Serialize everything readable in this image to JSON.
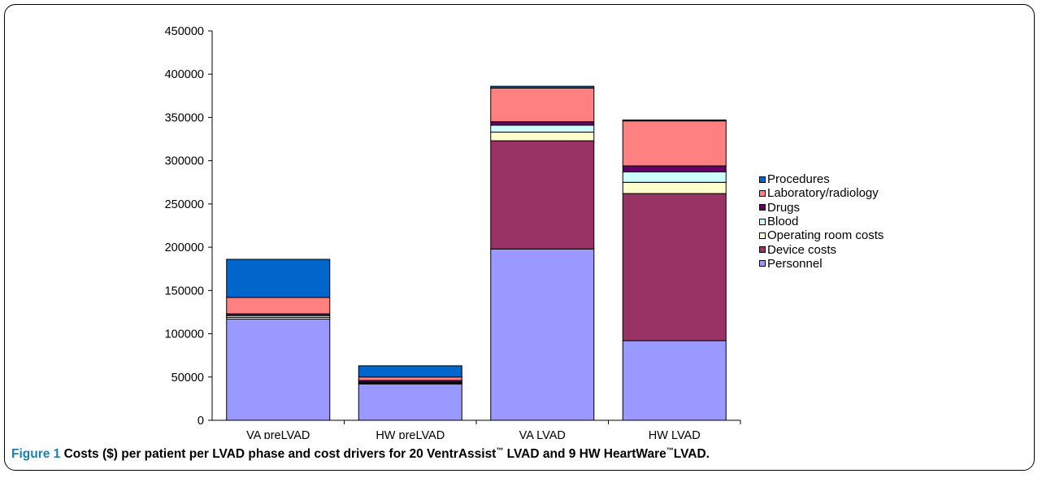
{
  "chart_data": {
    "type": "bar",
    "stacked": true,
    "categories": [
      "VA preLVAD",
      "HW preLVAD",
      "VA LVAD",
      "HW LVAD"
    ],
    "ylim": [
      0,
      450000
    ],
    "yticks": [
      0,
      50000,
      100000,
      150000,
      200000,
      250000,
      300000,
      350000,
      400000,
      450000
    ],
    "series": [
      {
        "name": "Personnel",
        "color": "#9999ff",
        "values": [
          117000,
          42000,
          198000,
          92000
        ]
      },
      {
        "name": "Device costs",
        "color": "#993366",
        "values": [
          0,
          0,
          125000,
          170000
        ]
      },
      {
        "name": "Operating room costs",
        "color": "#ffffcc",
        "values": [
          2000,
          1000,
          10000,
          13000
        ]
      },
      {
        "name": "Blood",
        "color": "#ccffff",
        "values": [
          2000,
          1000,
          8000,
          12000
        ]
      },
      {
        "name": "Drugs",
        "color": "#660066",
        "values": [
          2000,
          2000,
          4000,
          7000
        ]
      },
      {
        "name": "Laboratory/radiology",
        "color": "#ff8080",
        "values": [
          19000,
          4000,
          39000,
          52000
        ]
      },
      {
        "name": "Procedures",
        "color": "#0066cc",
        "values": [
          44000,
          13000,
          2000,
          1000
        ]
      }
    ],
    "legend_position": "right",
    "grid": false
  },
  "caption": {
    "label": "Figure 1",
    "text": "Costs ($) per patient per LVAD phase and cost drivers for 20 VentrAssist",
    "tm1": "™",
    "mid": " LVAD and 9 HW HeartWare",
    "tm2": "™",
    "end": "LVAD."
  }
}
